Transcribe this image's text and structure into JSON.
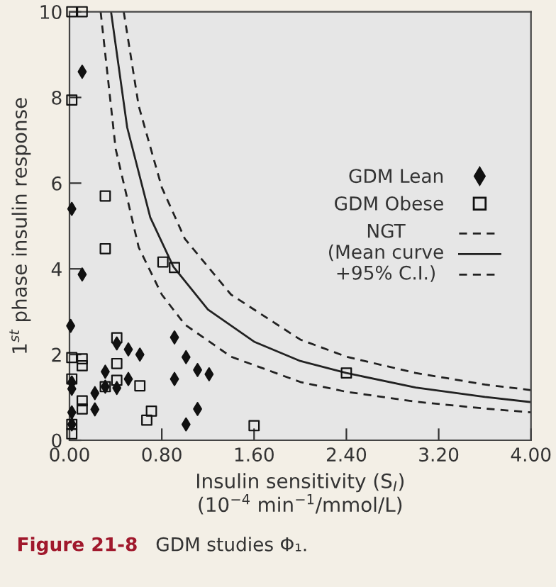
{
  "chart_data": {
    "type": "scatter",
    "xlabel": "Insulin sensitivity (S$_{I}$)\n(10$^{−4}$ min$^{−1}$/mmol/L)",
    "ylabel": "1$^{st}$ phase insulin response",
    "annotations": [
      "Figure 21-8",
      "GDM studies Φ₁."
    ],
    "legend": "center right",
    "xlim": [
      0,
      4
    ],
    "ylim": [
      0,
      10
    ],
    "xticks": [
      {
        "value": 0,
        "label": "0.00"
      },
      {
        "value": 0.8,
        "label": "0.80"
      },
      {
        "value": 1.6,
        "label": "1.60"
      },
      {
        "value": 2.4,
        "label": "2.40"
      },
      {
        "value": 3.2,
        "label": "3.20"
      },
      {
        "value": 4,
        "label": "4.00"
      }
    ],
    "yticks": [
      0,
      2,
      4,
      6,
      8,
      10
    ],
    "grid": false,
    "series": [
      {
        "name": "GDM Lean",
        "marker": "diamond",
        "color": "#111111",
        "x": [
          0.01,
          0.11,
          0.02,
          0.02,
          0.02,
          0.02,
          0.22,
          0.22,
          0.31,
          0.31,
          0.41,
          0.41,
          0.51,
          0.51,
          0.61,
          0.91,
          0.91,
          1.01,
          1.01,
          1.11,
          1.11,
          1.21,
          0.11,
          0.02
        ],
        "values": [
          2.67,
          3.87,
          1.35,
          1.2,
          0.65,
          0.37,
          1.1,
          0.72,
          1.6,
          1.25,
          2.26,
          1.22,
          2.12,
          1.43,
          2.0,
          2.4,
          1.43,
          1.94,
          0.37,
          1.64,
          0.73,
          1.54,
          8.6,
          5.4
        ]
      },
      {
        "name": "GDM Obese",
        "marker": "square",
        "color": "#111111",
        "x": [
          0.31,
          0.81,
          0.91,
          0.02,
          0.11,
          0.11,
          0.41,
          0.41,
          0.41,
          0.31,
          0.02,
          0.11,
          0.11,
          0.61,
          0.71,
          0.67,
          0.02,
          0.02,
          1.6,
          2.4,
          0.02,
          0.11,
          0.02,
          0.31
        ],
        "values": [
          4.47,
          4.16,
          4.03,
          1.93,
          1.9,
          1.74,
          2.39,
          1.79,
          1.4,
          1.25,
          1.43,
          0.92,
          0.73,
          1.27,
          0.68,
          0.47,
          0.37,
          0.15,
          0.34,
          1.57,
          10.0,
          10.0,
          7.94,
          5.7
        ]
      },
      {
        "name": "NGT\n(Mean curve\n+95% C.I.)",
        "type": "line",
        "line_style": "solid",
        "color": "#222222",
        "x": [
          0.36,
          0.5,
          0.7,
          0.9,
          1.2,
          1.6,
          2.0,
          2.4,
          3.0,
          3.6,
          4.0
        ],
        "values": [
          10,
          7.3,
          5.2,
          4.05,
          3.05,
          2.3,
          1.85,
          1.57,
          1.23,
          1.01,
          0.89
        ]
      },
      {
        "type": "line",
        "line_style": "dashed",
        "color": "#222222",
        "x": [
          0.47,
          0.6,
          0.8,
          1.0,
          1.4,
          2.0,
          2.4,
          3.0,
          3.6,
          4.0
        ],
        "values": [
          10,
          7.8,
          5.9,
          4.7,
          3.4,
          2.35,
          1.95,
          1.57,
          1.3,
          1.17
        ]
      },
      {
        "type": "line",
        "line_style": "dashed",
        "color": "#222222",
        "x": [
          0.27,
          0.4,
          0.6,
          0.8,
          1.0,
          1.4,
          2.0,
          2.4,
          3.0,
          3.6,
          4.0
        ],
        "values": [
          10,
          6.8,
          4.5,
          3.4,
          2.7,
          1.95,
          1.36,
          1.13,
          0.9,
          0.74,
          0.65
        ]
      }
    ]
  }
}
